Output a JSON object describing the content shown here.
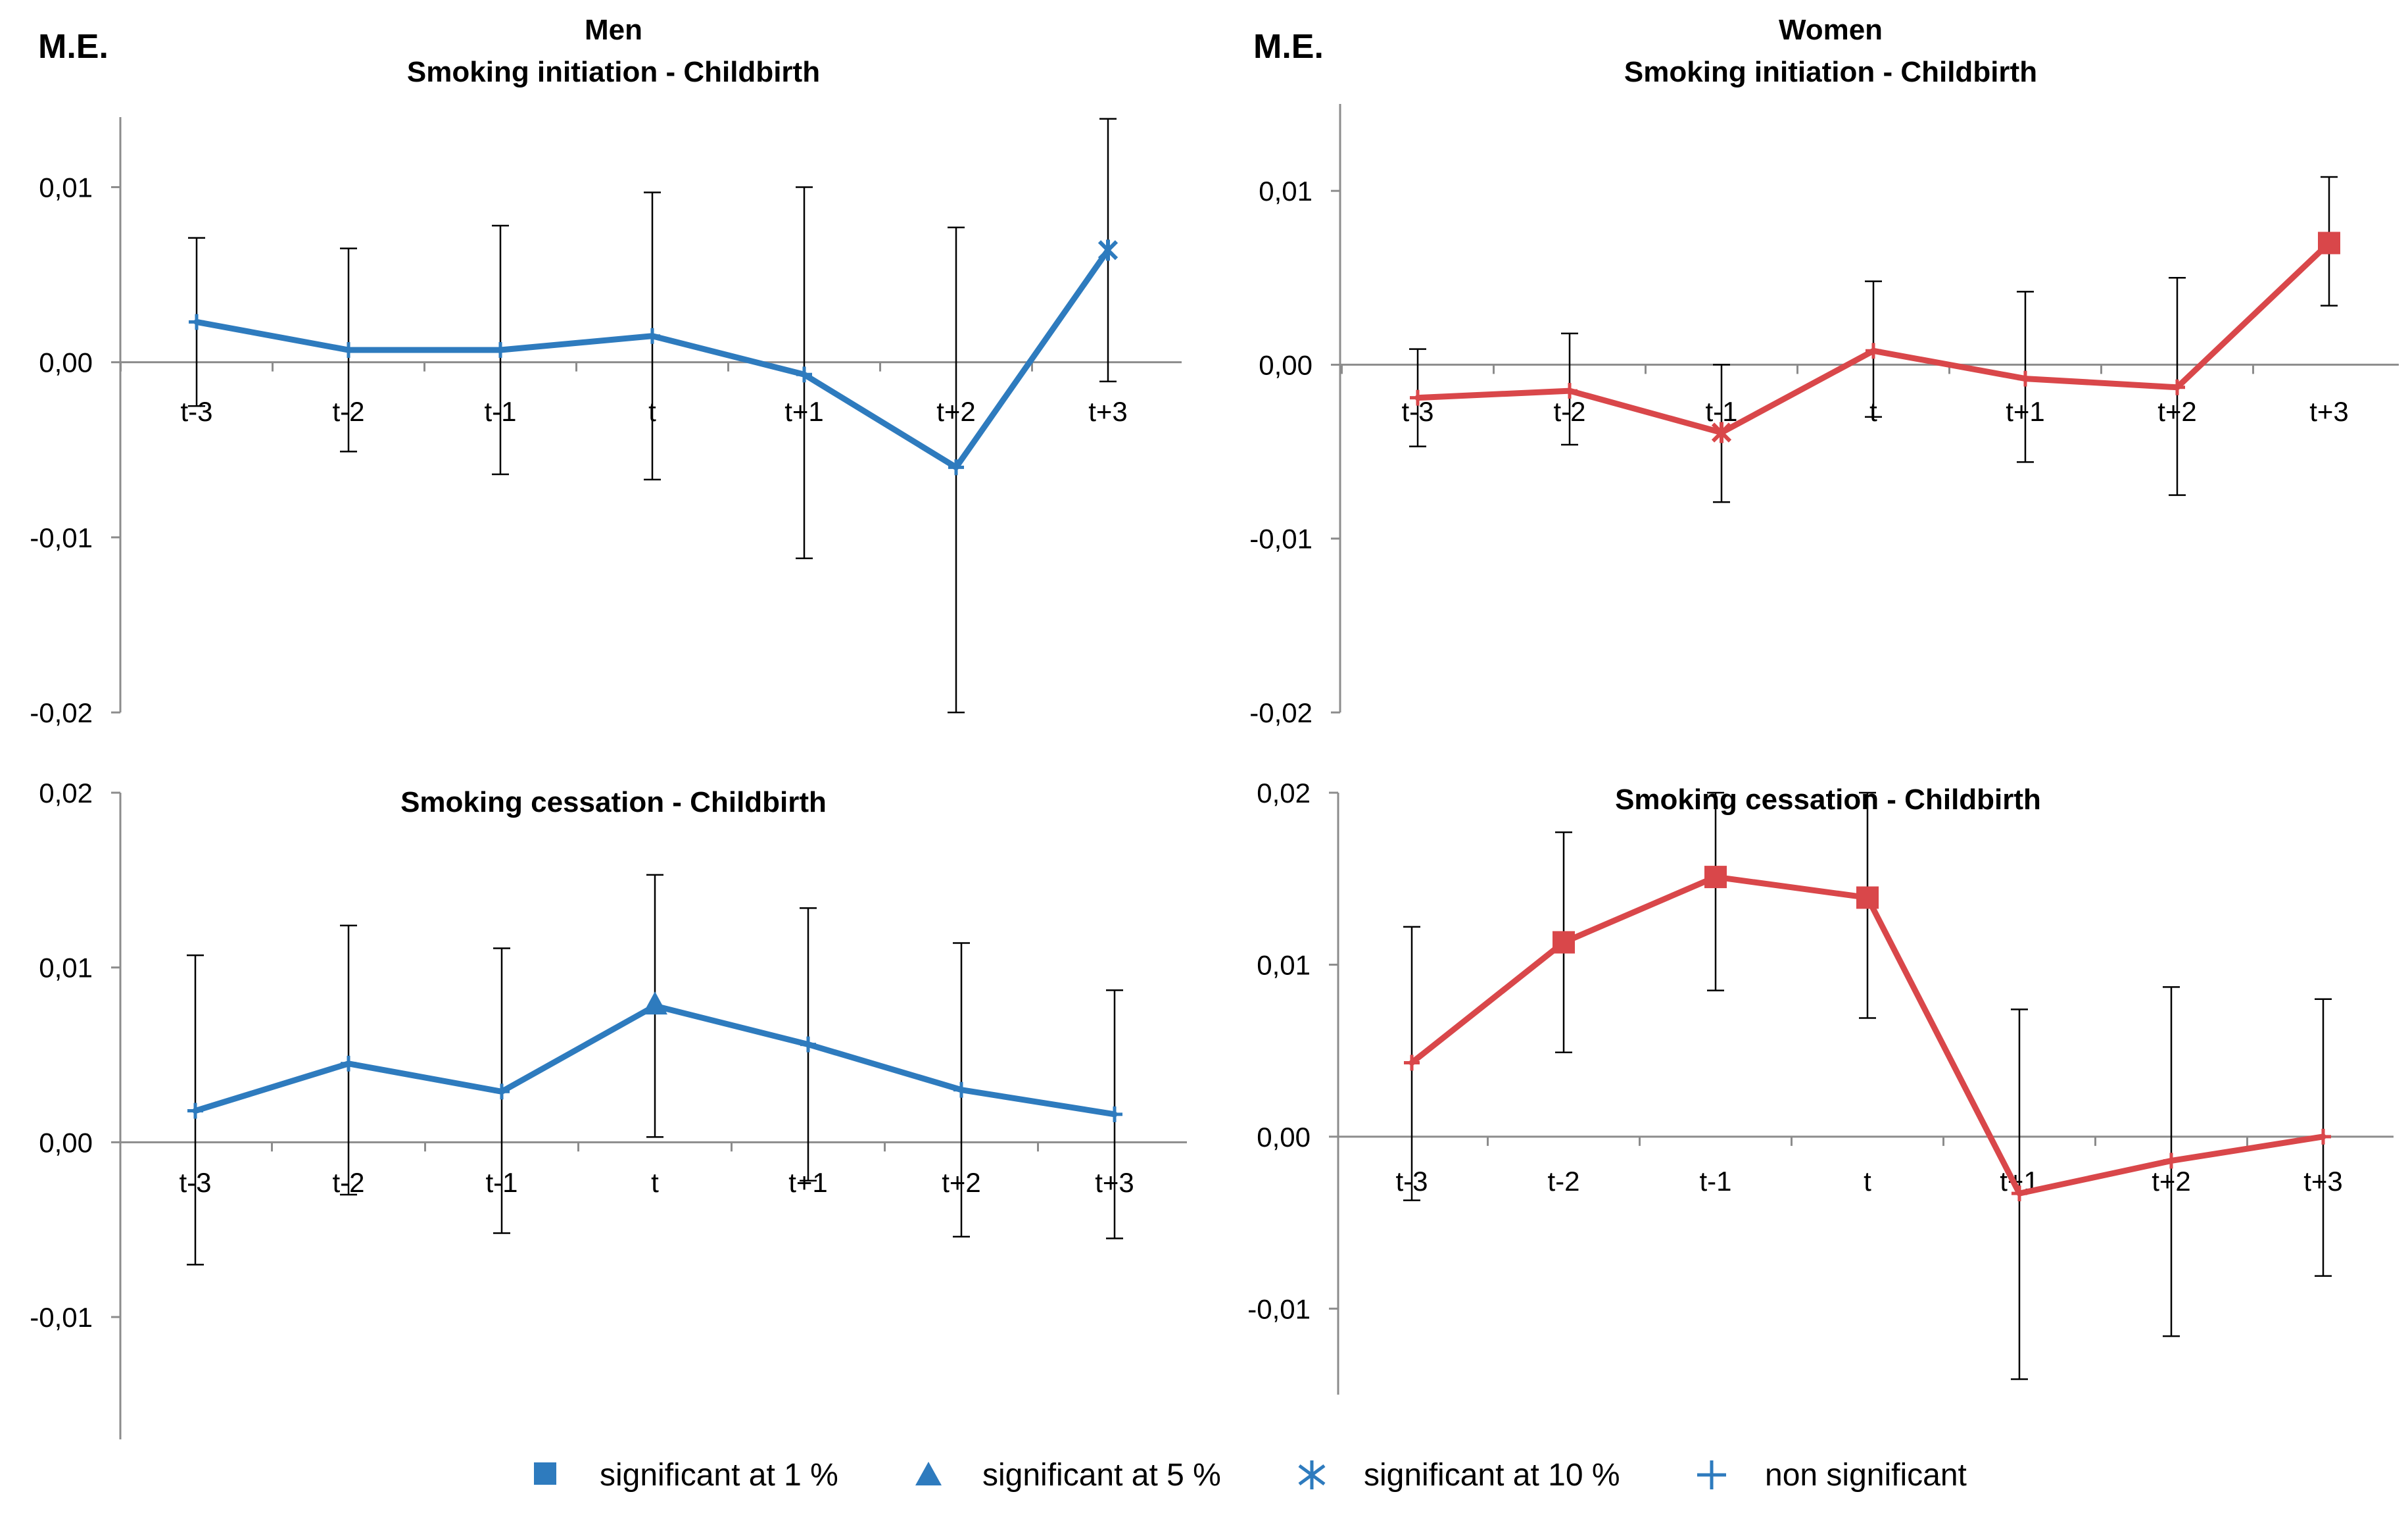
{
  "figure": {
    "me_label": "M.E.",
    "legend": [
      {
        "marker": "square",
        "label": "significant at 1 %"
      },
      {
        "marker": "triangle",
        "label": "significant at 5 %"
      },
      {
        "marker": "asterisk",
        "label": "significant at 10 %"
      },
      {
        "marker": "plus",
        "label": "non significant"
      }
    ],
    "legend_color": "#2E7BBE"
  },
  "chart_data": [
    {
      "id": "men-initiation",
      "type": "line",
      "group_title": "Men",
      "title": "Smoking initiation - Childbirth",
      "color": "#2E7BBE",
      "categories": [
        "t-3",
        "t-2",
        "t-1",
        "t",
        "t+1",
        "t+2",
        "t+3"
      ],
      "values": [
        0.0023,
        0.0007,
        0.0007,
        0.0015,
        -0.0007,
        -0.006,
        0.0064
      ],
      "lower": [
        -0.0025,
        -0.0051,
        -0.0064,
        -0.0067,
        -0.0112,
        -0.02,
        -0.0011
      ],
      "upper": [
        0.0071,
        0.0065,
        0.0078,
        0.0097,
        0.01,
        0.0077,
        0.0139
      ],
      "significance": [
        "none",
        "none",
        "none",
        "none",
        "none",
        "none",
        "10%"
      ],
      "ylim": [
        -0.02,
        0.014
      ],
      "yticks": [
        0.01,
        0.0,
        -0.01,
        -0.02
      ],
      "ytick_labels": [
        "0,01",
        "0,00",
        "-0,01",
        "-0,02"
      ]
    },
    {
      "id": "women-initiation",
      "type": "line",
      "group_title": "Women",
      "title": "Smoking initiation - Childbirth",
      "color": "#D9474A",
      "categories": [
        "t-3",
        "t-2",
        "t-1",
        "t",
        "t+1",
        "t+2",
        "t+3"
      ],
      "values": [
        -0.0019,
        -0.0015,
        -0.0039,
        0.0008,
        -0.0008,
        -0.0013,
        0.007
      ],
      "lower": [
        -0.0047,
        -0.0046,
        -0.0079,
        -0.003,
        -0.0056,
        -0.0075,
        0.0034
      ],
      "upper": [
        0.0009,
        0.0018,
        0.0,
        0.0048,
        0.0042,
        0.005,
        0.0108
      ],
      "significance": [
        "none",
        "none",
        "10%",
        "none",
        "none",
        "none",
        "1%"
      ],
      "ylim": [
        -0.02,
        0.015
      ],
      "yticks": [
        0.01,
        0.0,
        -0.01,
        -0.02
      ],
      "ytick_labels": [
        "0,01",
        "0,00",
        "-0,01",
        "-0,02"
      ]
    },
    {
      "id": "men-cessation",
      "type": "line",
      "group_title": "",
      "title": "Smoking cessation - Childbirth",
      "color": "#2E7BBE",
      "categories": [
        "t-3",
        "t-2",
        "t-1",
        "t",
        "t+1",
        "t+2",
        "t+3"
      ],
      "values": [
        0.0018,
        0.0045,
        0.0029,
        0.0078,
        0.0056,
        0.003,
        0.0016
      ],
      "lower": [
        -0.007,
        -0.003,
        -0.0052,
        0.0003,
        -0.0022,
        -0.0054,
        -0.0055
      ],
      "upper": [
        0.0107,
        0.0124,
        0.0111,
        0.0153,
        0.0134,
        0.0114,
        0.0087
      ],
      "significance": [
        "none",
        "none",
        "none",
        "5%",
        "none",
        "none",
        "none"
      ],
      "ylim": [
        -0.017,
        0.02
      ],
      "yticks": [
        0.02,
        0.01,
        0.0,
        -0.01
      ],
      "ytick_labels": [
        "0,02",
        "0,01",
        "0,00",
        "-0,01"
      ]
    },
    {
      "id": "women-cessation",
      "type": "line",
      "group_title": "",
      "title": "Smoking cessation - Childbirth",
      "color": "#D9474A",
      "categories": [
        "t-3",
        "t-2",
        "t-1",
        "t",
        "t+1",
        "t+2",
        "t+3"
      ],
      "values": [
        0.0043,
        0.0113,
        0.0151,
        0.0139,
        -0.0033,
        -0.0014,
        0.0
      ],
      "lower": [
        -0.0037,
        0.0049,
        0.0085,
        0.0069,
        -0.0141,
        -0.0116,
        -0.0081
      ],
      "upper": [
        0.0122,
        0.0177,
        0.02,
        0.02,
        0.0074,
        0.0087,
        0.008
      ],
      "significance": [
        "none",
        "1%",
        "1%",
        "1%",
        "none",
        "none",
        "none"
      ],
      "ylim": [
        -0.015,
        0.02
      ],
      "yticks": [
        0.02,
        0.01,
        0.0,
        -0.01
      ],
      "ytick_labels": [
        "0,02",
        "0,01",
        "0,00",
        "-0,01"
      ]
    }
  ]
}
